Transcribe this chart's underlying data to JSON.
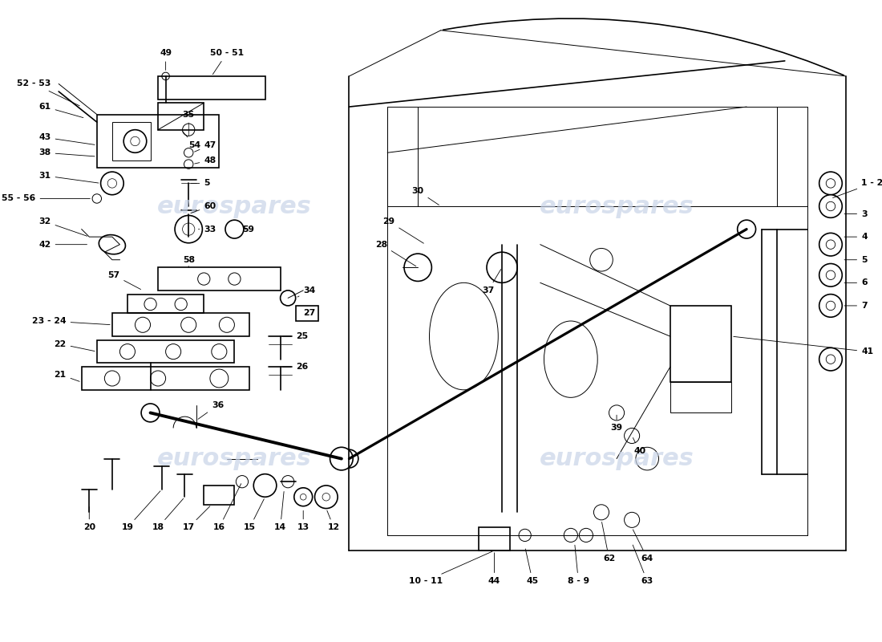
{
  "bg_color": "#ffffff",
  "line_color": "#000000",
  "watermark_color": "#c8d4e8",
  "watermark_text": "eurospares",
  "lw_thick": 1.8,
  "lw_med": 1.2,
  "lw_thin": 0.7,
  "label_fontsize": 7.8
}
